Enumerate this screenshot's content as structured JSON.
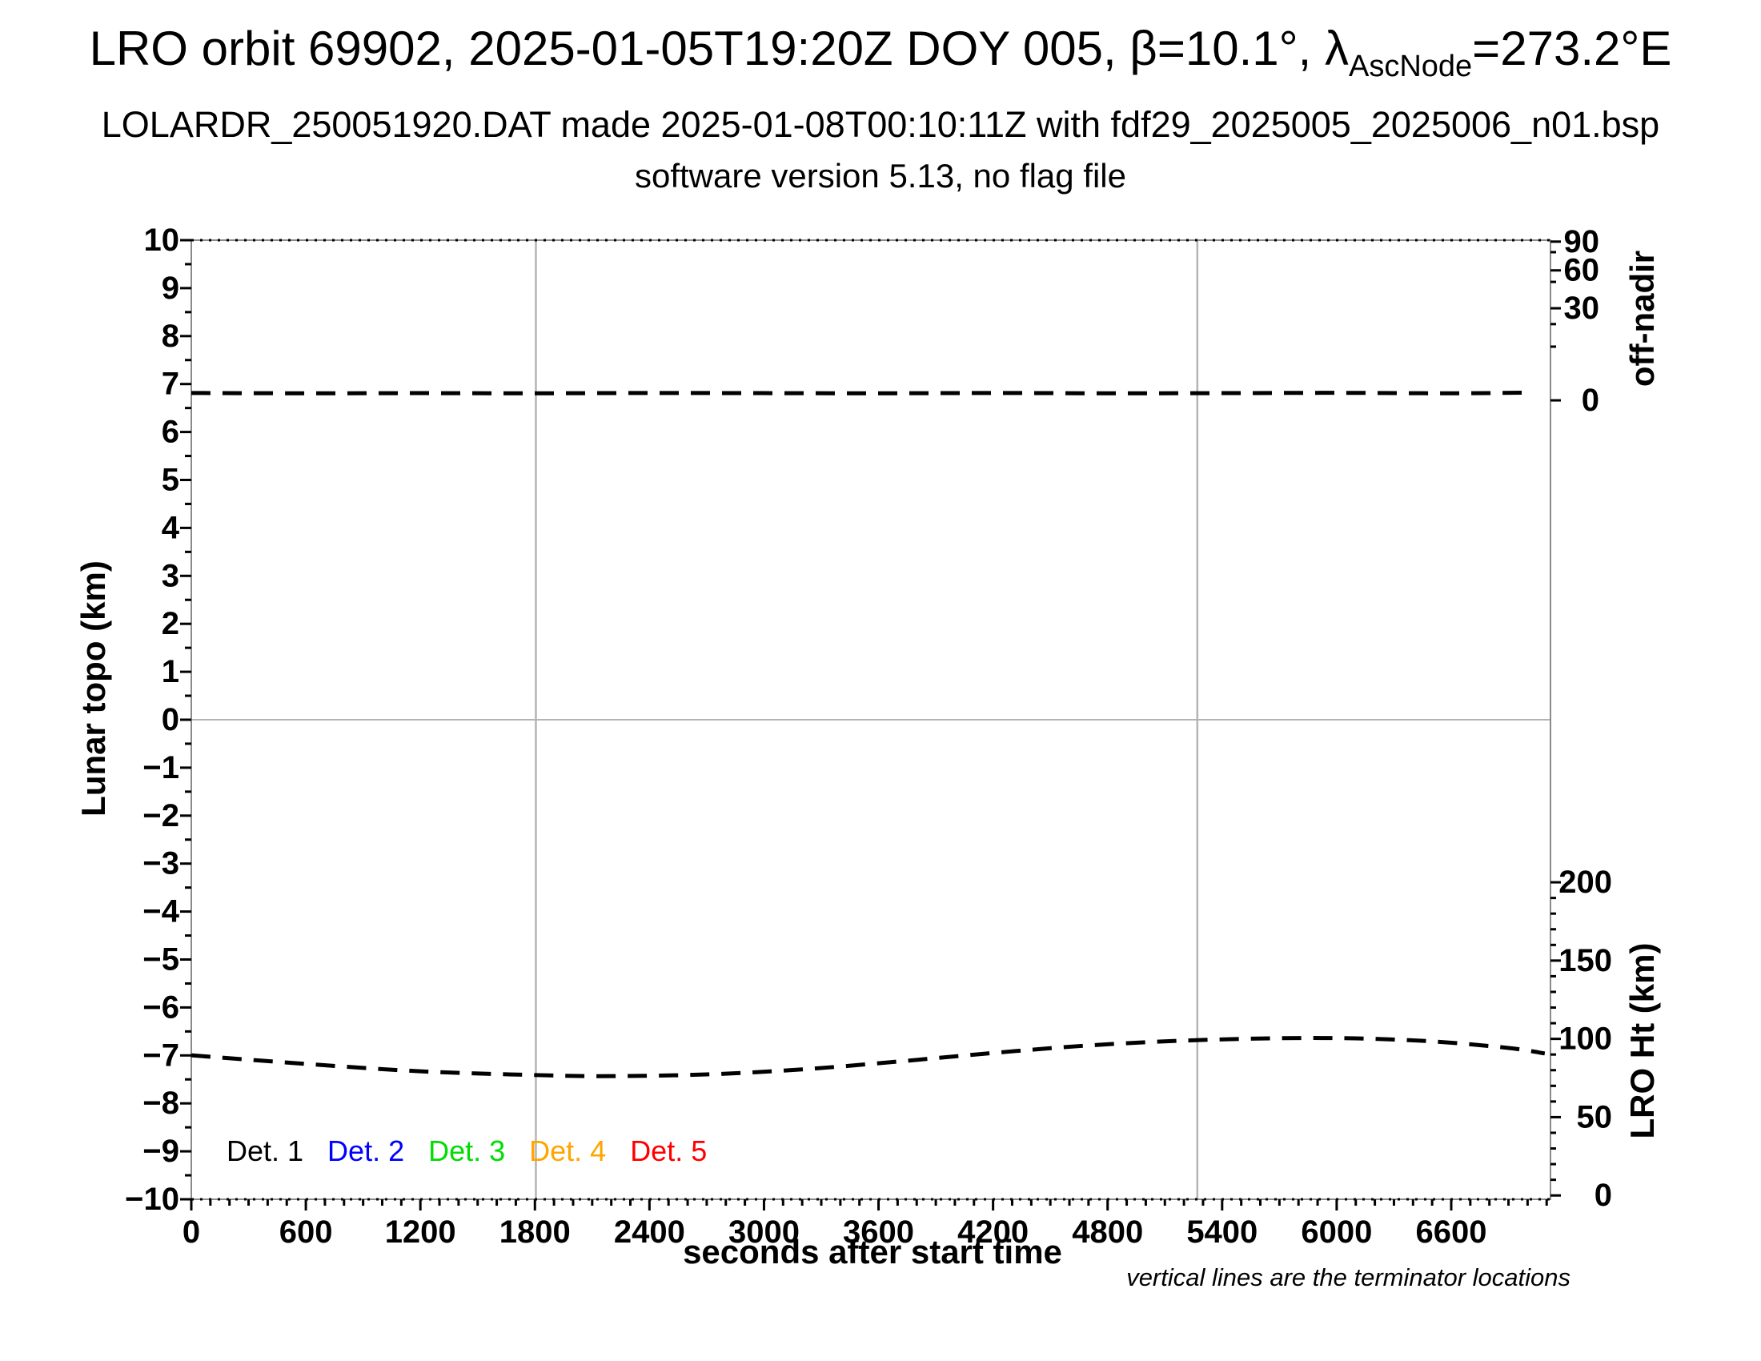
{
  "header": {
    "title_prefix": "LRO orbit 69902, 2025-01-05T19:20Z DOY 005, β=10.1°, λ",
    "title_subscript": "AscNode",
    "title_suffix": "=273.2°E",
    "subtitle": "LOLARDR_250051920.DAT made 2025-01-08T00:10:11Z with fdf29_2025005_2025006_n01.bsp",
    "version_line": "software version 5.13, no flag file"
  },
  "footnote": "vertical lines are the terminator locations",
  "legend": {
    "items": [
      {
        "label": "Det. 1",
        "color": "#000000"
      },
      {
        "label": "Det. 2",
        "color": "#0000ff"
      },
      {
        "label": "Det. 3",
        "color": "#00dd00"
      },
      {
        "label": "Det. 4",
        "color": "#ffa500"
      },
      {
        "label": "Det. 5",
        "color": "#ff0000"
      }
    ]
  },
  "chart_data": {
    "type": "line",
    "title": "LRO orbit 69902, 2025-01-05T19:20Z DOY 005, β=10.1°, λAscNode=273.2°E",
    "xlabel": "seconds after start time",
    "ylabel_left": "Lunar topo (km)",
    "ylabel_right_top": "off-nadir",
    "ylabel_right_bottom": "LRO Ht (km)",
    "xlim": [
      0,
      7120
    ],
    "ylim_left": [
      -10,
      10
    ],
    "x_major_ticks": [
      0,
      600,
      1200,
      1800,
      2400,
      3000,
      3600,
      4200,
      4800,
      5400,
      6000,
      6600
    ],
    "x_minor_step": 100,
    "y_left_ticks": [
      10,
      9,
      8,
      7,
      6,
      5,
      4,
      3,
      2,
      1,
      0,
      -1,
      -2,
      -3,
      -4,
      -5,
      -6,
      -7,
      -8,
      -9,
      -10
    ],
    "y_left_minor_step": 0.5,
    "grid_on": true,
    "legend_position": "bottom-left inside",
    "off_nadir_axis": {
      "unit": "degrees",
      "topo_at_0": 6.66,
      "topo_per_deg_near_zero": 0.064,
      "major_ticks": [
        {
          "label": "90",
          "deg": 90,
          "topo": 9.97
        },
        {
          "label": "60",
          "deg": 60,
          "topo": 9.37
        },
        {
          "label": "30",
          "deg": 30,
          "topo": 8.58
        },
        {
          "label": "0",
          "deg": 0,
          "topo": 6.66
        }
      ],
      "minor_topo": [
        9.75,
        9.13,
        8.25,
        7.78
      ]
    },
    "lro_ht_axis": {
      "unit": "km",
      "topo_at_0": -9.92,
      "topo_per_km": 0.03265,
      "major_ticks": [
        {
          "label": "200",
          "km": 200
        },
        {
          "label": "150",
          "km": 150
        },
        {
          "label": "100",
          "km": 100
        },
        {
          "label": "50",
          "km": 50
        },
        {
          "label": "0",
          "km": 0
        }
      ],
      "minor_km": [
        10,
        20,
        30,
        40,
        60,
        70,
        80,
        90,
        110,
        120,
        130,
        140,
        160,
        170,
        180,
        190
      ]
    },
    "terminator_lines_s": [
      1805,
      5270
    ],
    "zero_line_topo": 0,
    "series": [
      {
        "name": "off-nadir angle (deg)",
        "axis": "off_nadir",
        "style": "dashed",
        "color": "#000000",
        "points": [
          [
            0,
            2.4
          ],
          [
            600,
            2.3
          ],
          [
            1200,
            2.35
          ],
          [
            1800,
            2.3
          ],
          [
            2400,
            2.4
          ],
          [
            3000,
            2.35
          ],
          [
            3600,
            2.3
          ],
          [
            4200,
            2.4
          ],
          [
            4800,
            2.3
          ],
          [
            5400,
            2.35
          ],
          [
            6000,
            2.45
          ],
          [
            6600,
            2.3
          ],
          [
            6990,
            2.5
          ]
        ]
      },
      {
        "name": "LRO height (km)",
        "axis": "lro_ht",
        "style": "dashed",
        "color": "#000000",
        "points": [
          [
            0,
            89.5
          ],
          [
            600,
            84.0
          ],
          [
            1200,
            79.3
          ],
          [
            1800,
            76.9
          ],
          [
            2200,
            76.2
          ],
          [
            2700,
            77.3
          ],
          [
            3200,
            80.5
          ],
          [
            3700,
            85.5
          ],
          [
            4200,
            91.0
          ],
          [
            4700,
            95.8
          ],
          [
            5200,
            98.9
          ],
          [
            5700,
            100.4
          ],
          [
            6100,
            100.3
          ],
          [
            6500,
            98.4
          ],
          [
            6900,
            94.2
          ],
          [
            7090,
            90.7
          ]
        ]
      }
    ],
    "grid_color": "#b4b4b4",
    "frame_color": "#8a8a8a",
    "data_line_color": "#000000"
  }
}
